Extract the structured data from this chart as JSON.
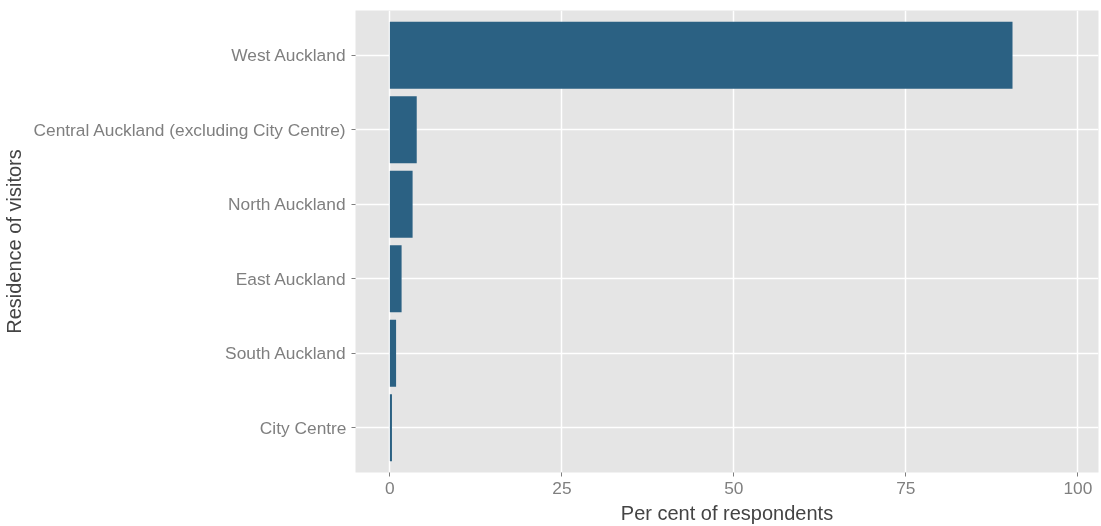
{
  "chart_data": {
    "type": "bar",
    "orientation": "horizontal",
    "xlabel": "Per cent of respondents",
    "ylabel": "Residence of visitors",
    "categories": [
      "West Auckland",
      "Central Auckland (excluding City Centre)",
      "North Auckland",
      "East Auckland",
      "South Auckland",
      "City Centre"
    ],
    "values": [
      90.5,
      3.9,
      3.3,
      1.7,
      0.9,
      0.3
    ],
    "color": "#2b6183",
    "xlim": [
      -5,
      103
    ],
    "xticks": [
      0,
      25,
      50,
      75,
      100
    ],
    "grid": true
  }
}
